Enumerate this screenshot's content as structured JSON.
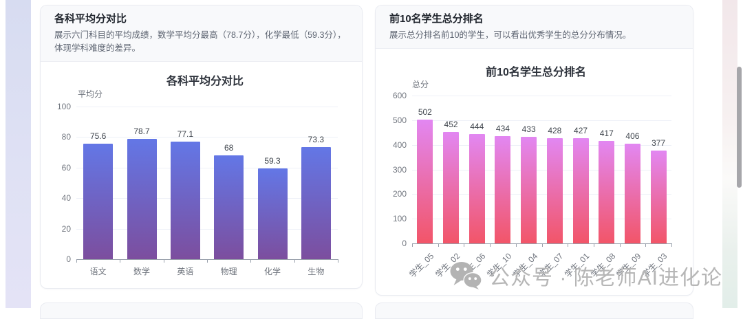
{
  "cards": [
    {
      "title": "各科平均分对比",
      "description": "展示六门科目的平均成绩，数学平均分最高（78.7分），化学最低（59.3分），体现学科难度的差异。"
    },
    {
      "title": "前10名学生总分排名",
      "description": "展示总分排名前10的学生，可以看出优秀学生的总分分布情况。"
    }
  ],
  "chart_data": [
    {
      "type": "bar",
      "title": "各科平均分对比",
      "ylabel": "平均分",
      "xlabel": "",
      "categories": [
        "语文",
        "数学",
        "英语",
        "物理",
        "化学",
        "生物"
      ],
      "values": [
        75.6,
        78.7,
        77.1,
        68,
        59.3,
        73.3
      ],
      "ylim": [
        0,
        100
      ],
      "yticks": [
        0,
        20,
        40,
        60,
        80,
        100
      ],
      "grid": true,
      "legend": "none",
      "bar_gradient": [
        "#6377e6",
        "#7c4e9e"
      ]
    },
    {
      "type": "bar",
      "title": "前10名学生总分排名",
      "ylabel": "总分",
      "xlabel": "",
      "categories": [
        "学生_05",
        "学生_02",
        "学生_06",
        "学生_10",
        "学生_04",
        "学生_07",
        "学生_01",
        "学生_08",
        "学生_09",
        "学生_03"
      ],
      "values": [
        502,
        452,
        444,
        434,
        433,
        428,
        427,
        417,
        406,
        377
      ],
      "ylim": [
        0,
        600
      ],
      "yticks": [
        0,
        100,
        200,
        300,
        400,
        500,
        600
      ],
      "grid": true,
      "legend": "none",
      "xlabel_rotate": 45,
      "bar_gradient": [
        "#e287f2",
        "#f25568"
      ]
    }
  ],
  "watermark": {
    "icon": "wechat-icon",
    "text": "公众号 · 陈老师AI进化论"
  },
  "colors": {
    "grid": "#edf0f7",
    "axis": "#98a0ab",
    "tick_label": "#71767f",
    "value_label": "#3f454d",
    "watermark": "#b6b6b6",
    "card_header_bg": "#f8f9fb",
    "left_band": "#dcdff3",
    "right_band_top": "#f2e7ea",
    "right_band_bottom": "#e2eee9"
  }
}
